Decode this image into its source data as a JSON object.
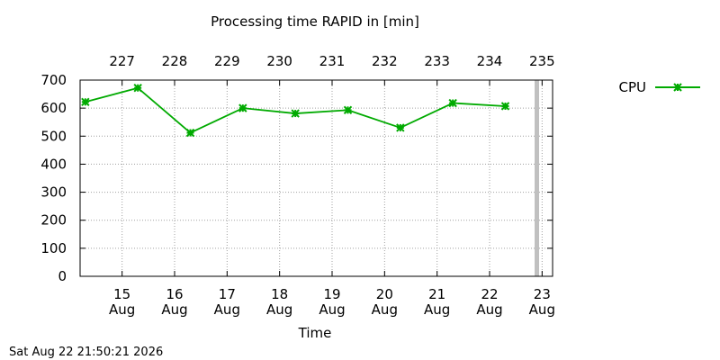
{
  "chart_data": {
    "type": "line",
    "title": "Processing time RAPID in [min]",
    "xlabel": "Time",
    "ylabel": "",
    "ylim": [
      0,
      700
    ],
    "yticks": [
      0,
      100,
      200,
      300,
      400,
      500,
      600,
      700
    ],
    "grid": true,
    "legend_position": "right",
    "x_axis_range_days": [
      14.2,
      23.2
    ],
    "bottom_ticks": [
      {
        "day": 15,
        "line1": "15",
        "line2": "Aug"
      },
      {
        "day": 16,
        "line1": "16",
        "line2": "Aug"
      },
      {
        "day": 17,
        "line1": "17",
        "line2": "Aug"
      },
      {
        "day": 18,
        "line1": "18",
        "line2": "Aug"
      },
      {
        "day": 19,
        "line1": "19",
        "line2": "Aug"
      },
      {
        "day": 20,
        "line1": "20",
        "line2": "Aug"
      },
      {
        "day": 21,
        "line1": "21",
        "line2": "Aug"
      },
      {
        "day": 22,
        "line1": "22",
        "line2": "Aug"
      },
      {
        "day": 23,
        "line1": "23",
        "line2": "Aug"
      }
    ],
    "top_ticks": [
      {
        "day": 15,
        "label": "227"
      },
      {
        "day": 16,
        "label": "228"
      },
      {
        "day": 17,
        "label": "229"
      },
      {
        "day": 18,
        "label": "230"
      },
      {
        "day": 19,
        "label": "231"
      },
      {
        "day": 20,
        "label": "232"
      },
      {
        "day": 21,
        "label": "233"
      },
      {
        "day": 22,
        "label": "234"
      },
      {
        "day": 23,
        "label": "235"
      }
    ],
    "now_marker_day": 22.9,
    "series": [
      {
        "name": "CPU",
        "color": "#00aa00",
        "marker": "cross",
        "points": [
          {
            "day": 14.3,
            "value": 622
          },
          {
            "day": 15.3,
            "value": 672
          },
          {
            "day": 16.3,
            "value": 512
          },
          {
            "day": 17.3,
            "value": 600
          },
          {
            "day": 18.3,
            "value": 581
          },
          {
            "day": 19.3,
            "value": 593
          },
          {
            "day": 20.3,
            "value": 530
          },
          {
            "day": 21.3,
            "value": 618
          },
          {
            "day": 22.3,
            "value": 607
          }
        ]
      }
    ]
  },
  "footer": {
    "timestamp": "Sat Aug 22 21:50:21 2026"
  },
  "colors": {
    "grid": "#a0a0a0",
    "marker_bar": "#c0c0c0"
  }
}
